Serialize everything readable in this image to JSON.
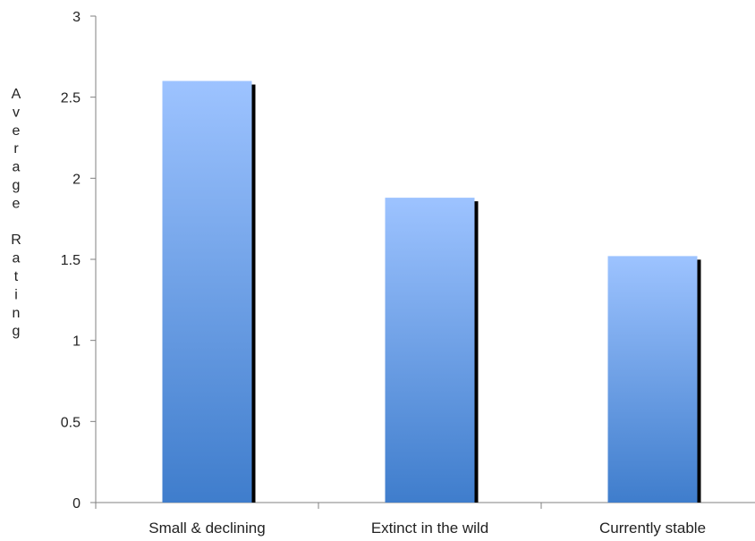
{
  "chart_data": {
    "type": "bar",
    "title": "",
    "xlabel": "",
    "ylabel": "Average Rating",
    "categories": [
      "Small & declining",
      "Extinct in the wild",
      "Currently stable"
    ],
    "values": [
      2.6,
      1.88,
      1.52
    ],
    "ylim": [
      0,
      3
    ],
    "yticks": [
      0,
      0.5,
      1,
      1.5,
      2,
      2.5,
      3
    ],
    "ytick_labels": [
      "0",
      "0.5",
      "1",
      "1.5",
      "2",
      "2.5",
      "3"
    ],
    "grid": false,
    "legend": "none",
    "bar_color_top": "#9dc3ff",
    "bar_color_bottom": "#3f7dcc",
    "bar_shadow_color": "#000000",
    "axis_color": "#808080"
  }
}
